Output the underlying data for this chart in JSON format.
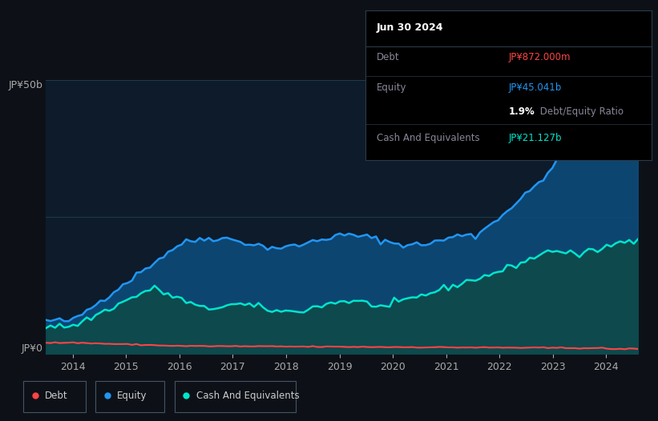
{
  "bg_color": "#0d1117",
  "plot_bg_color": "#0d1b2a",
  "grid_color": "#1e3a4a",
  "title_date": "Jun 30 2024",
  "debt_color": "#ff4444",
  "equity_color": "#2196f3",
  "cash_color": "#00e5cc",
  "equity_fill_color": "#0d4a7a",
  "cash_fill_color": "#0d4a4a",
  "ylabel_50b": "JP¥50b",
  "ylabel_0": "JP¥0",
  "x_ticks": [
    "2014",
    "2015",
    "2016",
    "2017",
    "2018",
    "2019",
    "2020",
    "2021",
    "2022",
    "2023",
    "2024"
  ],
  "legend_labels": [
    "Debt",
    "Equity",
    "Cash And Equivalents"
  ],
  "tooltip_title": "Jun 30 2024",
  "tooltip_debt_label": "Debt",
  "tooltip_debt_value": "JP¥872.000m",
  "tooltip_equity_label": "Equity",
  "tooltip_equity_value": "JP¥45.041b",
  "tooltip_ratio_pct": "1.9%",
  "tooltip_ratio_text": " Debt/Equity Ratio",
  "tooltip_cash_label": "Cash And Equivalents",
  "tooltip_cash_value": "JP¥21.127b",
  "separator_color": "#2a3a4a",
  "label_color": "#888899",
  "tick_color": "#aaaaaa",
  "legend_text_color": "#cccccc",
  "legend_border_color": "#445566"
}
